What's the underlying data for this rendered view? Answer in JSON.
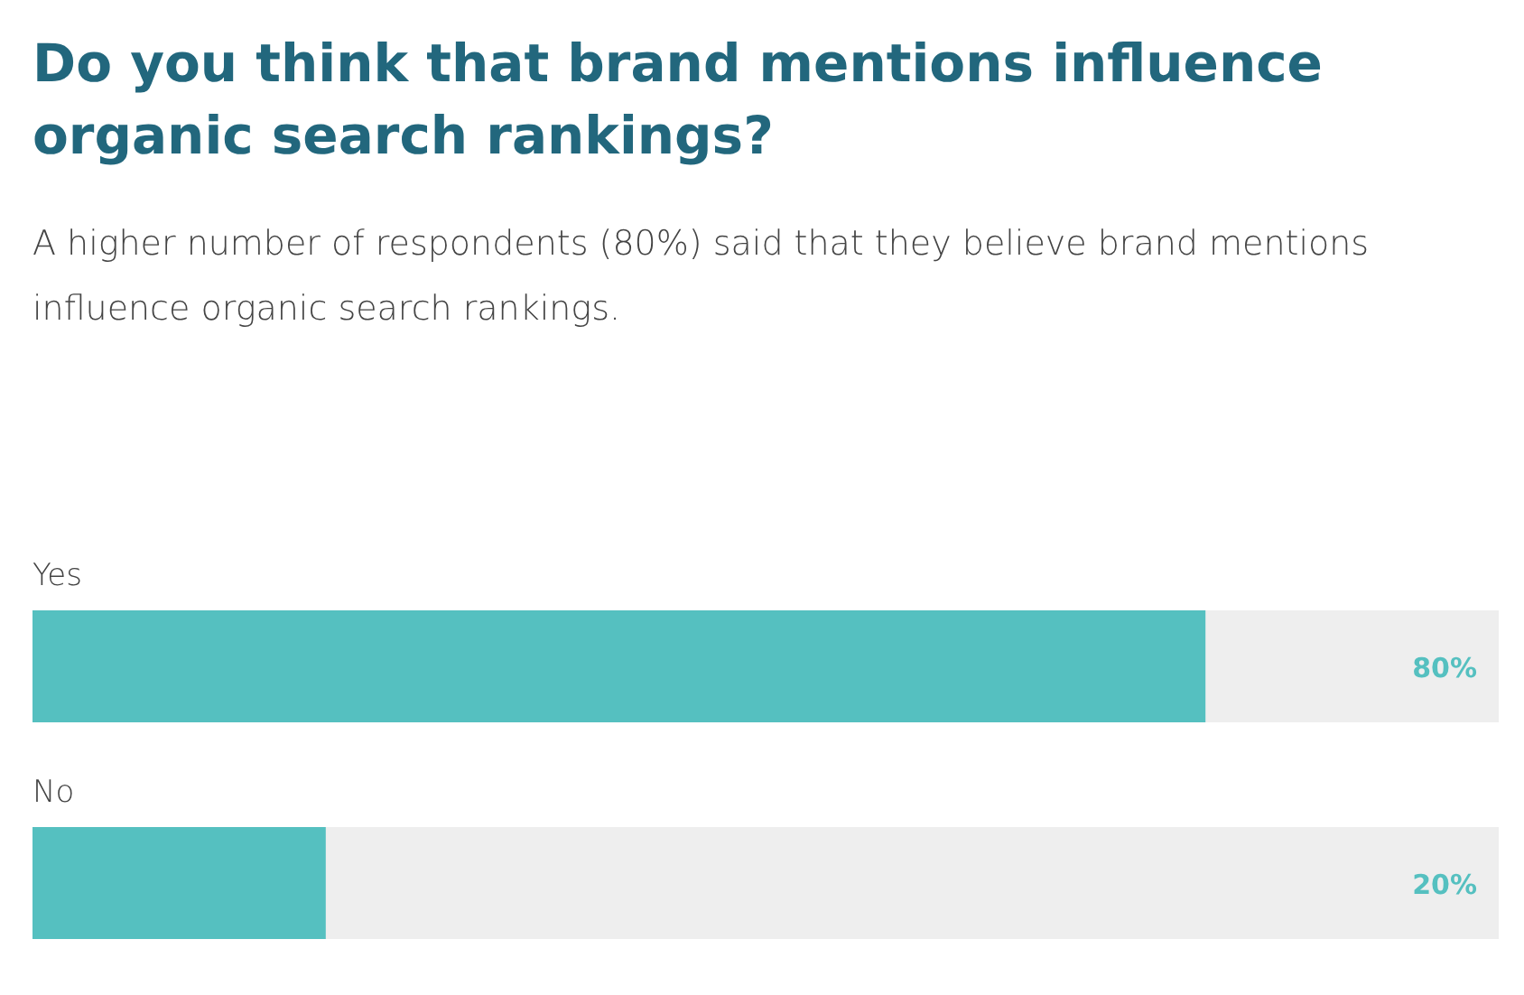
{
  "chart_data": {
    "type": "bar",
    "orientation": "horizontal",
    "title": "Do you think that brand mentions influence organic search rankings?",
    "subtitle": "A higher number of respondents (80%) said that they believe brand mentions influence organic search rankings.",
    "categories": [
      "Yes",
      "No"
    ],
    "values": [
      80,
      20
    ],
    "color": "#55c0c0",
    "value_labels": [
      "80%",
      "20%"
    ],
    "xlim": [
      0,
      100
    ]
  }
}
